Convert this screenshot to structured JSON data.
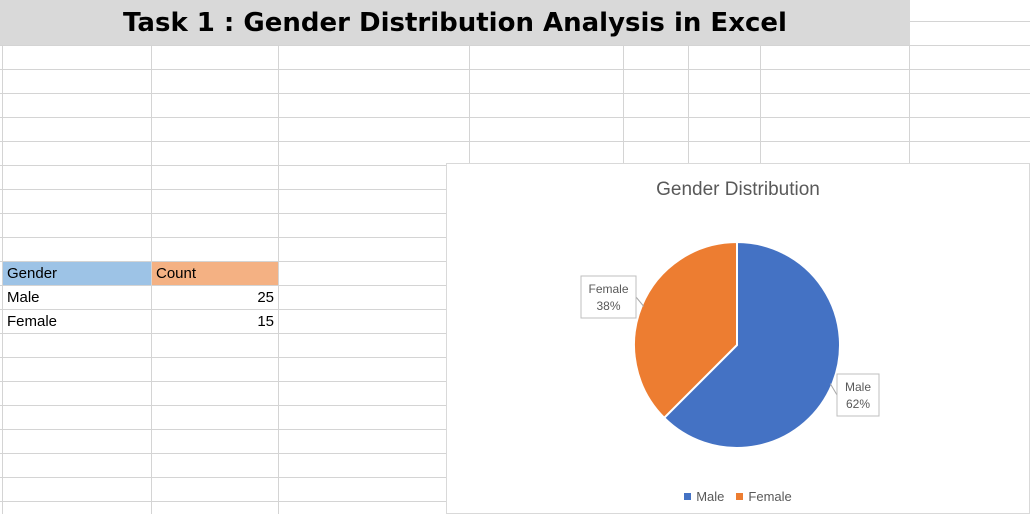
{
  "sheet": {
    "title": "Task 1 : Gender Distribution Analysis in Excel",
    "table": {
      "headers": [
        "Gender",
        "Count"
      ],
      "rows": [
        {
          "gender": "Male",
          "count": "25"
        },
        {
          "gender": "Female",
          "count": "15"
        }
      ]
    }
  },
  "colors": {
    "male": "#4472c4",
    "female": "#ed7d31",
    "gender_header": "#9dc3e6",
    "count_header": "#f4b183"
  },
  "chart_data": {
    "type": "pie",
    "title": "Gender Distribution",
    "categories": [
      "Male",
      "Female"
    ],
    "values": [
      25,
      15
    ],
    "data_labels": [
      {
        "name": "Male",
        "percent": "62%"
      },
      {
        "name": "Female",
        "percent": "38%"
      }
    ],
    "legend": {
      "position": "bottom",
      "entries": [
        "Male",
        "Female"
      ]
    }
  }
}
